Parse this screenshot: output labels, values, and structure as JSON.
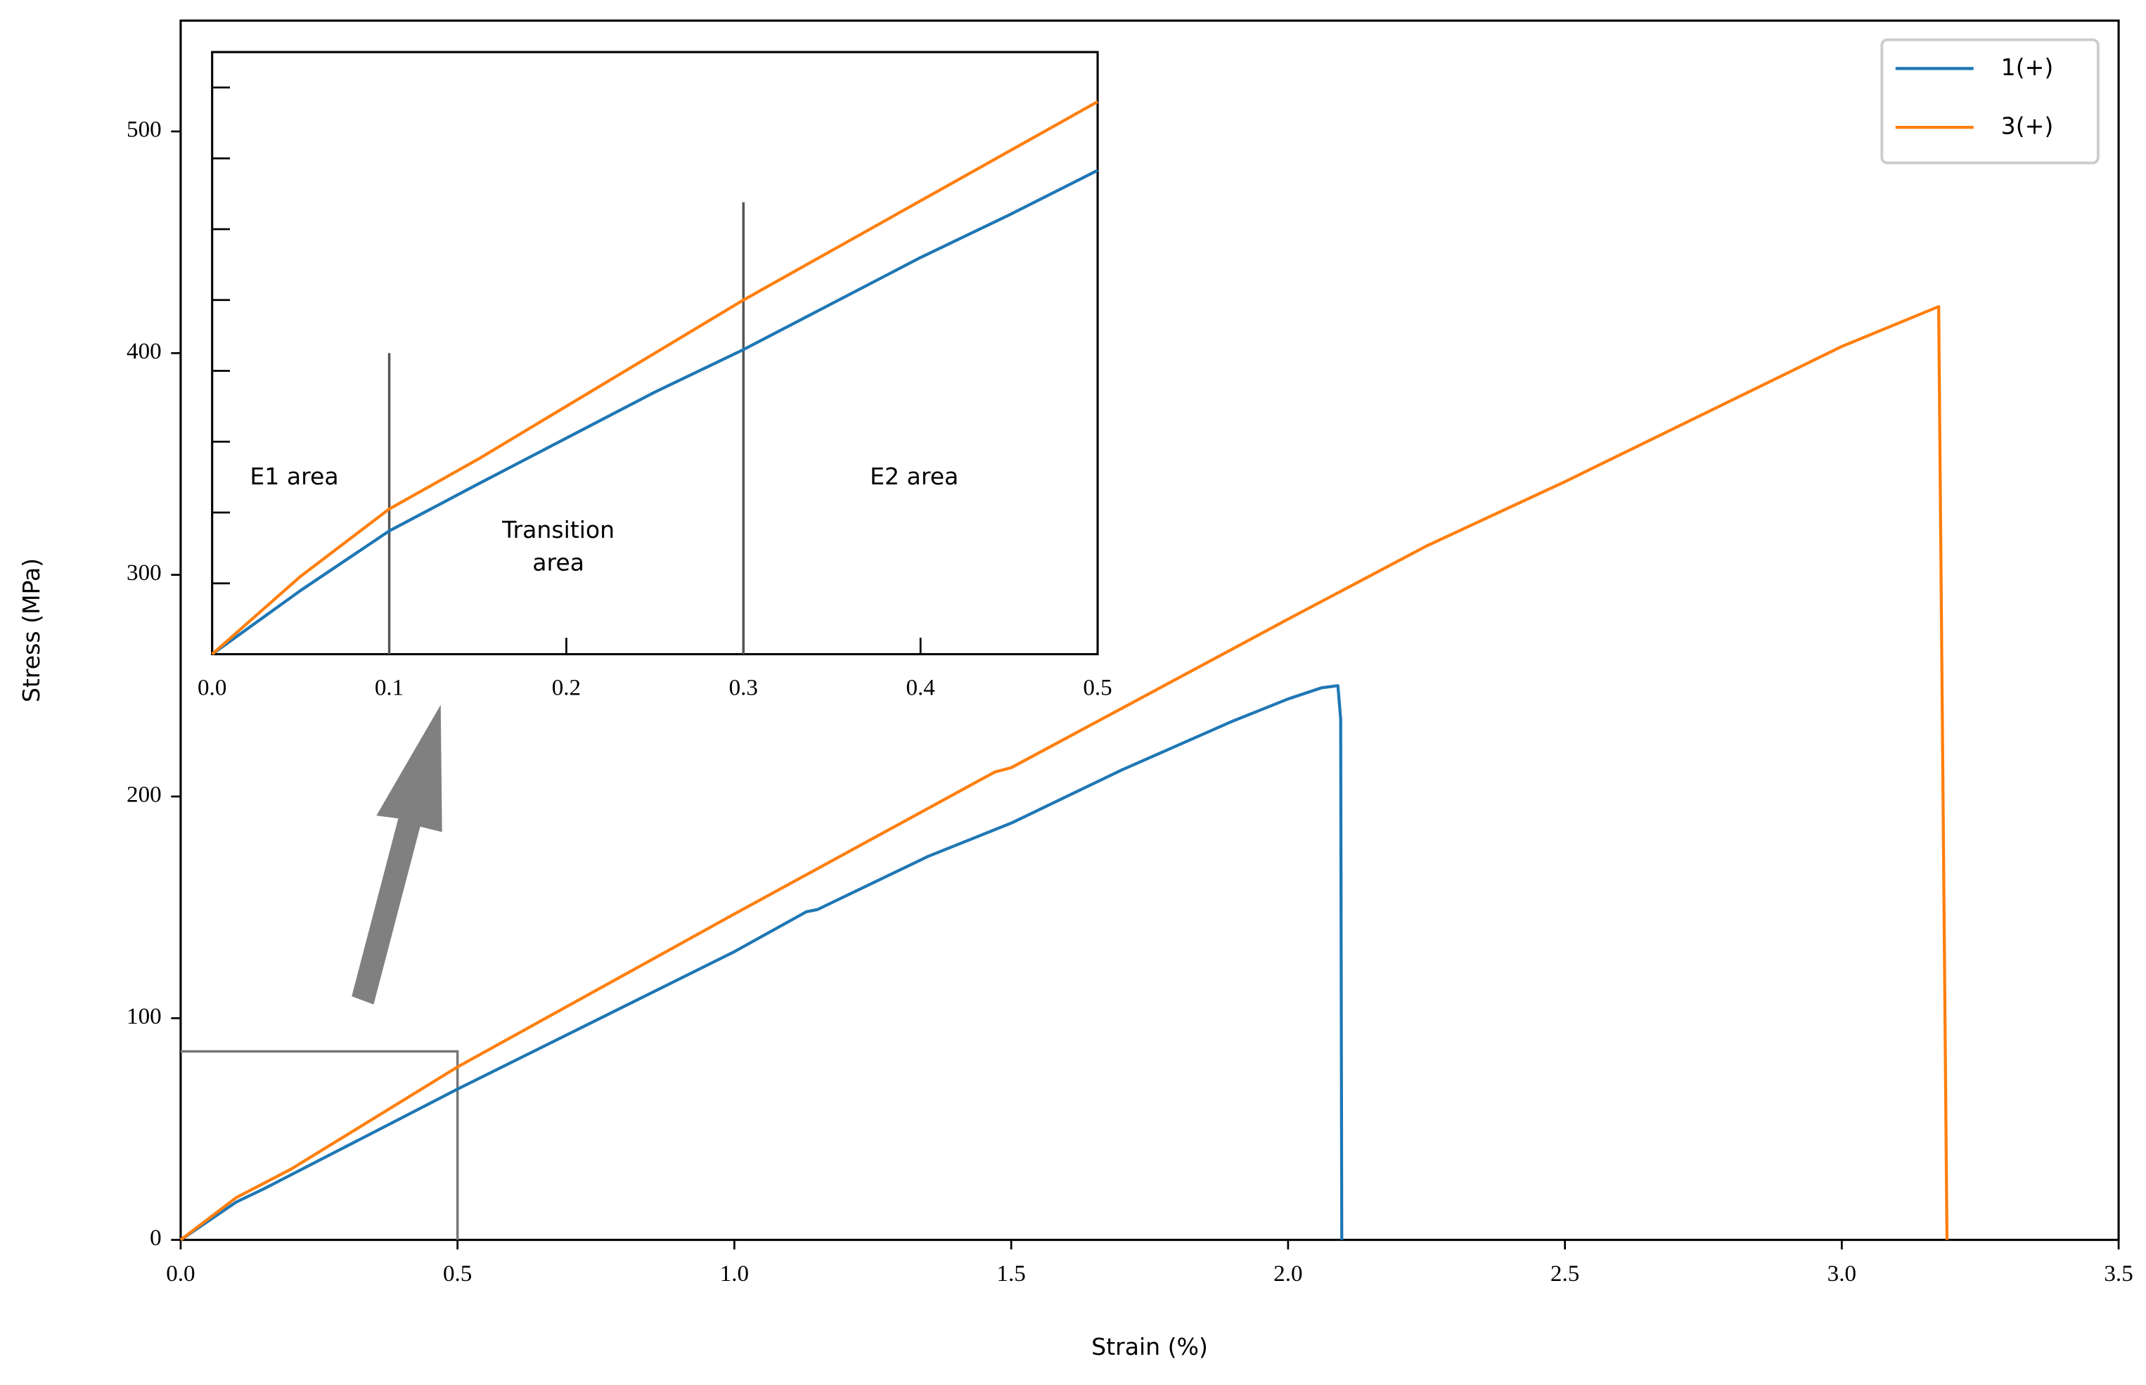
{
  "chart_data": [
    {
      "type": "line",
      "xlabel": "Strain (%)",
      "ylabel": "Stress (MPa)",
      "xlim": [
        0,
        3.5
      ],
      "ylim": [
        0,
        550
      ],
      "xticks": [
        {
          "value": 0,
          "label": "0.0"
        },
        {
          "value": 0.5,
          "label": "0.5"
        },
        {
          "value": 1,
          "label": "1.0"
        },
        {
          "value": 1.5,
          "label": "1.5"
        },
        {
          "value": 2,
          "label": "2.0"
        },
        {
          "value": 2.5,
          "label": "2.5"
        },
        {
          "value": 3,
          "label": "3.0"
        },
        {
          "value": 3.5,
          "label": "3.5"
        }
      ],
      "yticks": [
        0,
        100,
        200,
        300,
        400,
        500
      ],
      "legend": "upper right",
      "zoom_box": {
        "x": [
          0,
          0.5
        ],
        "y": [
          0,
          85
        ]
      },
      "series": [
        {
          "name": "1(+)",
          "color": "#1f77b4",
          "x": [
            0,
            0.1,
            0.15,
            0.5,
            1.0,
            1.13,
            1.15,
            1.35,
            1.5,
            1.7,
            1.9,
            2.0,
            2.06,
            2.09,
            2.095,
            2.097
          ],
          "values": [
            0,
            17,
            23,
            68,
            130,
            148,
            149,
            173,
            188,
            212,
            234,
            244,
            249,
            250,
            235,
            0
          ]
        },
        {
          "name": "3(+)",
          "color": "#ff7f0e",
          "x": [
            0,
            0.1,
            0.2,
            0.5,
            1.0,
            1.47,
            1.5,
            2.0,
            2.25,
            2.5,
            3.0,
            3.175,
            3.19
          ],
          "values": [
            0,
            19,
            32,
            78,
            147,
            211,
            213,
            280,
            313,
            342,
            403,
            421,
            0
          ]
        }
      ]
    },
    {
      "type": "line",
      "xlim": [
        0,
        0.5
      ],
      "ylim": [
        0,
        85
      ],
      "xticks": [
        {
          "value": 0,
          "label": "0.0"
        },
        {
          "value": 0.1,
          "label": "0.1"
        },
        {
          "value": 0.2,
          "label": "0.2"
        },
        {
          "value": 0.3,
          "label": "0.3"
        },
        {
          "value": 0.4,
          "label": "0.4"
        },
        {
          "value": 0.5,
          "label": "0.5"
        }
      ],
      "yticks": [
        0,
        10,
        20,
        30,
        40,
        50,
        60,
        70,
        80
      ],
      "vlines": [
        {
          "x": 0.1,
          "ymax": 42.5
        },
        {
          "x": 0.3,
          "ymax": 63.8
        }
      ],
      "annotations": [
        [
          "E1 area"
        ],
        [
          "Transition",
          "area"
        ],
        [
          "E2 area"
        ]
      ],
      "series": [
        {
          "color": "#1f77b4",
          "x": [
            0,
            0.05,
            0.1,
            0.15,
            0.2,
            0.25,
            0.3,
            0.35,
            0.4,
            0.45,
            0.5
          ],
          "values": [
            0,
            9,
            17.4,
            24,
            30.5,
            37,
            43,
            49.5,
            56,
            62,
            68.3
          ]
        },
        {
          "color": "#ff7f0e",
          "x": [
            0,
            0.05,
            0.1,
            0.15,
            0.2,
            0.25,
            0.3,
            0.35,
            0.4,
            0.45,
            0.5
          ],
          "values": [
            0,
            11,
            20.5,
            27.5,
            35,
            42.5,
            50,
            57,
            64,
            71,
            78
          ]
        }
      ]
    }
  ]
}
